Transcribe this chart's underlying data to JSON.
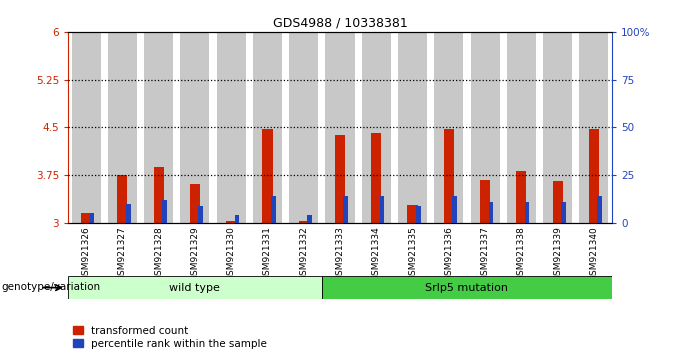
{
  "title": "GDS4988 / 10338381",
  "samples": [
    "GSM921326",
    "GSM921327",
    "GSM921328",
    "GSM921329",
    "GSM921330",
    "GSM921331",
    "GSM921332",
    "GSM921333",
    "GSM921334",
    "GSM921335",
    "GSM921336",
    "GSM921337",
    "GSM921338",
    "GSM921339",
    "GSM921340"
  ],
  "red_values": [
    3.15,
    3.75,
    3.88,
    3.62,
    3.03,
    4.48,
    3.03,
    4.38,
    4.42,
    3.28,
    4.47,
    3.68,
    3.82,
    3.66,
    4.48
  ],
  "blue_percentile": [
    5,
    10,
    12,
    9,
    4,
    14,
    4,
    14,
    14,
    9,
    14,
    11,
    11,
    11,
    14
  ],
  "ylim_left": [
    3.0,
    6.0
  ],
  "ylim_right": [
    0,
    100
  ],
  "yticks_left": [
    3.0,
    3.75,
    4.5,
    5.25,
    6.0
  ],
  "yticks_right": [
    0,
    25,
    50,
    75,
    100
  ],
  "ytick_labels_left": [
    "3",
    "3.75",
    "4.5",
    "5.25",
    "6"
  ],
  "ytick_labels_right": [
    "0",
    "25",
    "50",
    "75",
    "100%"
  ],
  "hlines": [
    3.75,
    4.5,
    5.25
  ],
  "wild_type_count": 7,
  "wild_type_label": "wild type",
  "mutation_label": "Srlp5 mutation",
  "genotype_label": "genotype/variation",
  "legend_red": "transformed count",
  "legend_blue": "percentile rank within the sample",
  "red_color": "#cc2200",
  "blue_color": "#2244bb",
  "wild_type_bg": "#ccffcc",
  "mutation_bg": "#44cc44",
  "bar_bg": "#c8c8c8"
}
